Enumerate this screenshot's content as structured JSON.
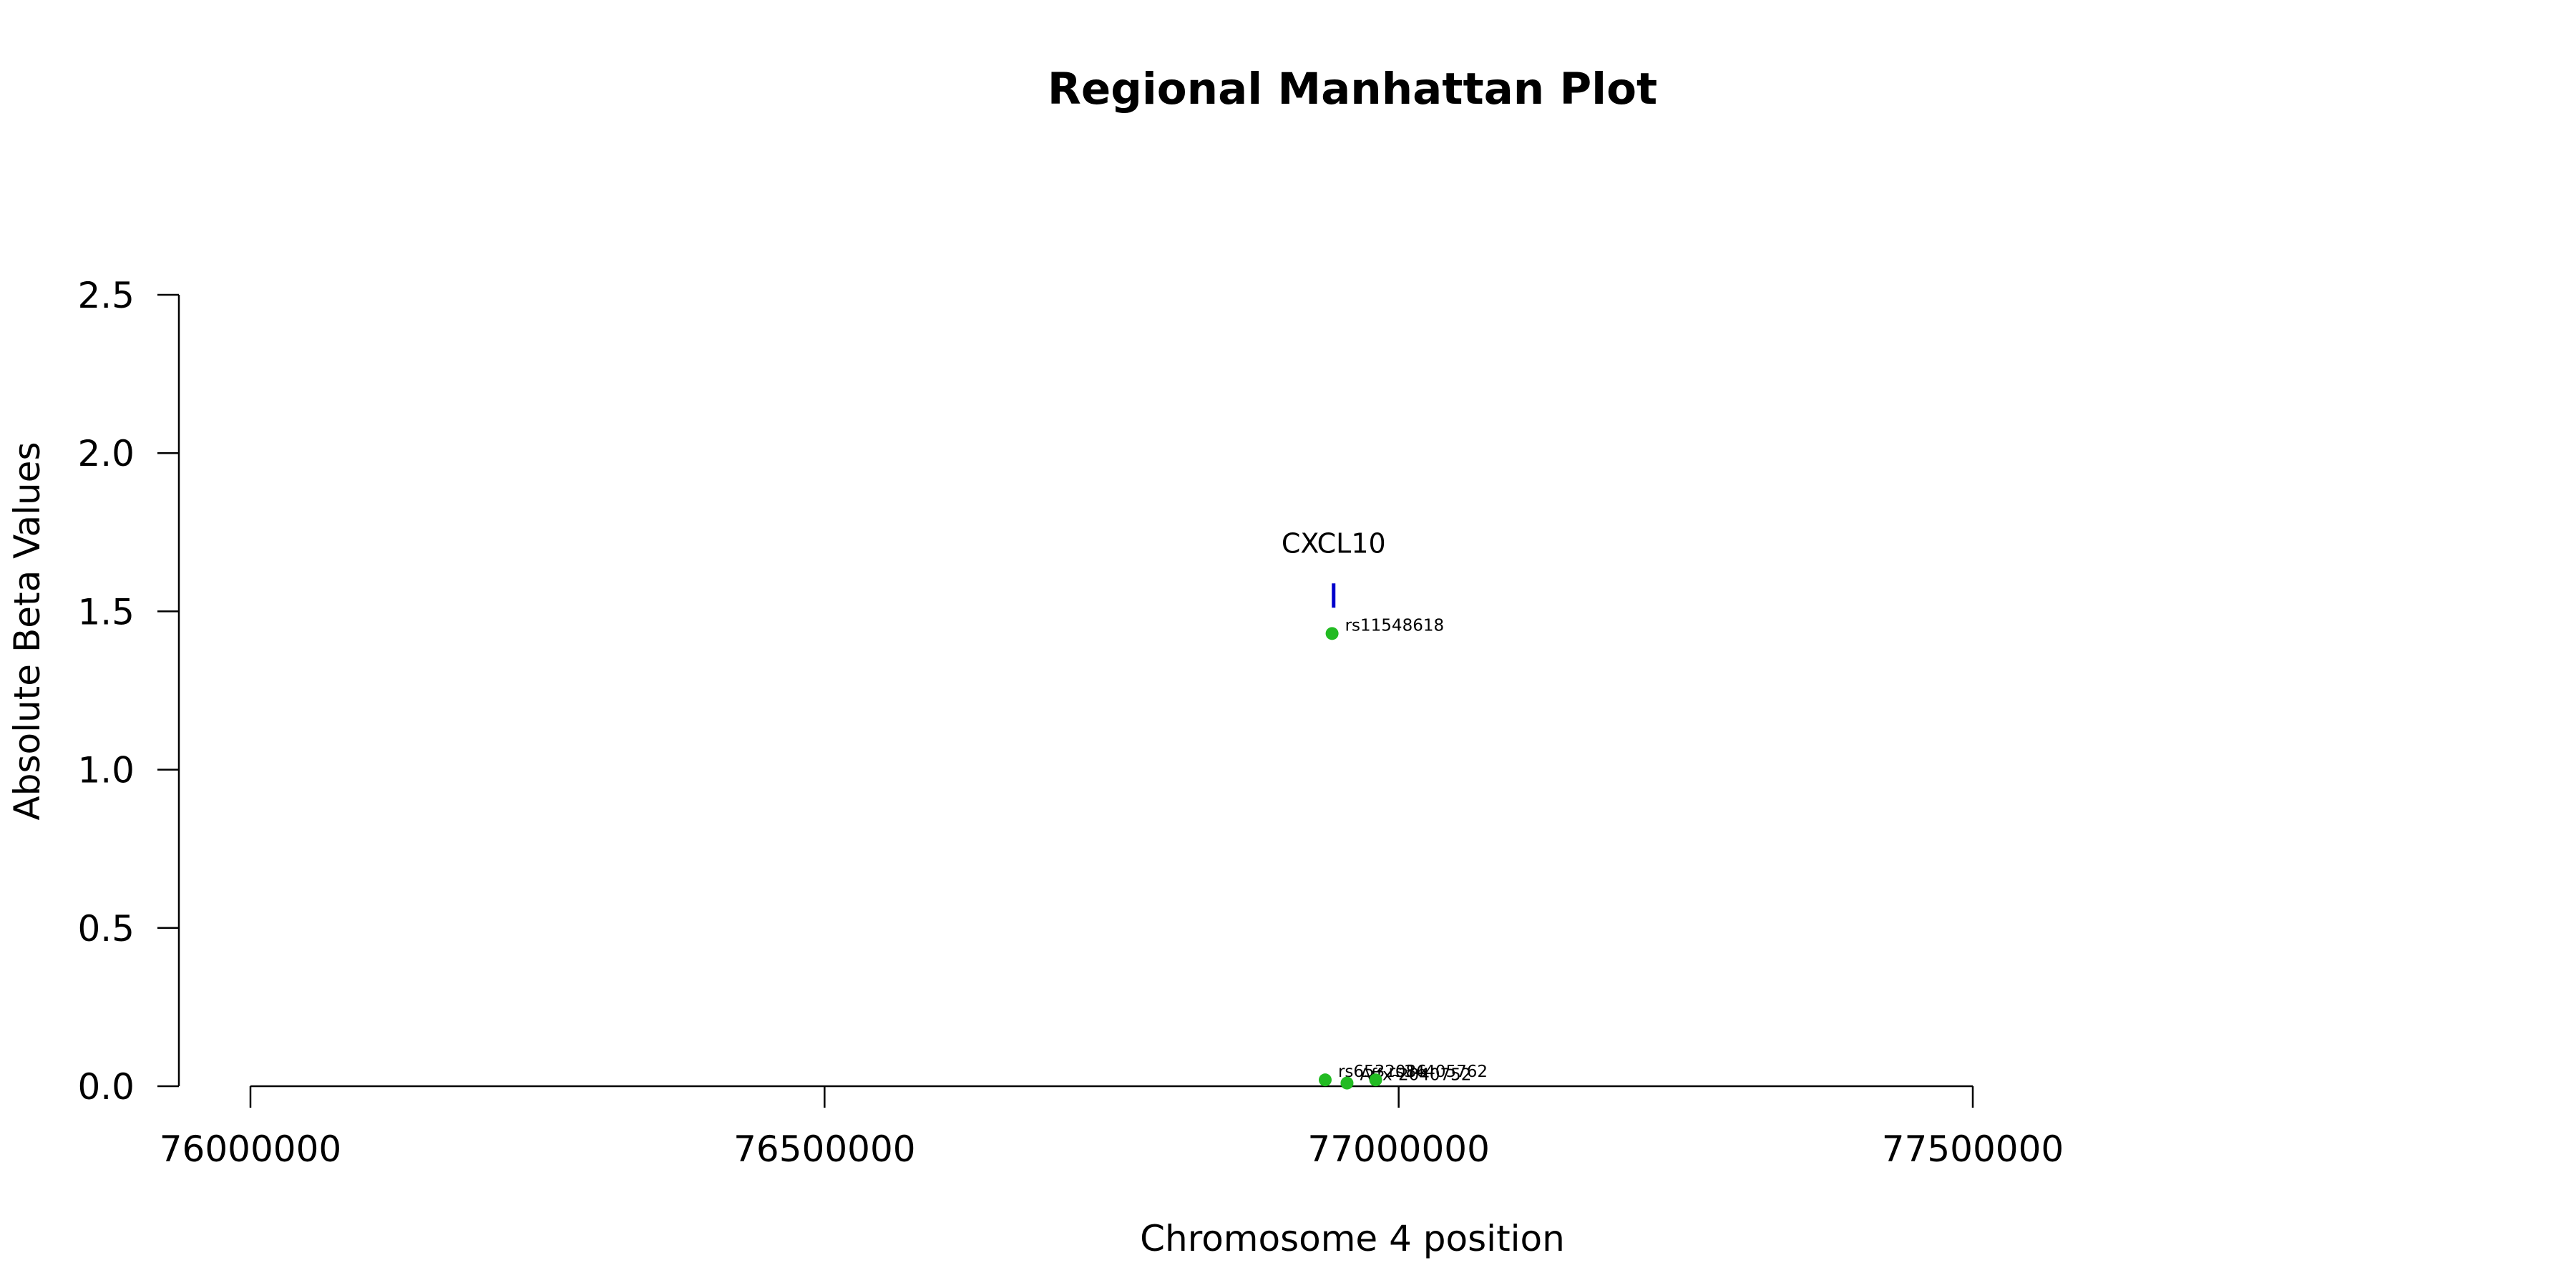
{
  "chart_data": {
    "type": "scatter",
    "title": "Regional Manhattan Plot",
    "xlabel": "Chromosome 4 position",
    "ylabel": "Absolute Beta Values",
    "xlim": [
      76000000,
      77500000
    ],
    "ylim": [
      0,
      2.5
    ],
    "x_ticks": [
      76000000,
      76500000,
      77000000,
      77500000
    ],
    "x_tick_labels": [
      "76000000",
      "76500000",
      "77000000",
      "77500000"
    ],
    "y_ticks": [
      0,
      0.5,
      1,
      1.5,
      2,
      2.5
    ],
    "y_tick_labels": [
      "0.0",
      "0.5",
      "1.0",
      "1.5",
      "2.0",
      "2.5"
    ],
    "grid": false,
    "point_color": "#22bb22",
    "gene_color": "#0000cc",
    "genes": [
      {
        "name": "CXCL10",
        "start": 76942000,
        "end": 76944700,
        "y": 1.55
      }
    ],
    "points": [
      {
        "label": "rs11548618",
        "x": 76942000,
        "y": 1.43
      },
      {
        "label": "rs6532086",
        "x": 76936000,
        "y": 0.02
      },
      {
        "label": "Affx-2040752",
        "x": 76955000,
        "y": 0.01
      },
      {
        "label": "rs34405762",
        "x": 76980000,
        "y": 0.02
      }
    ]
  }
}
